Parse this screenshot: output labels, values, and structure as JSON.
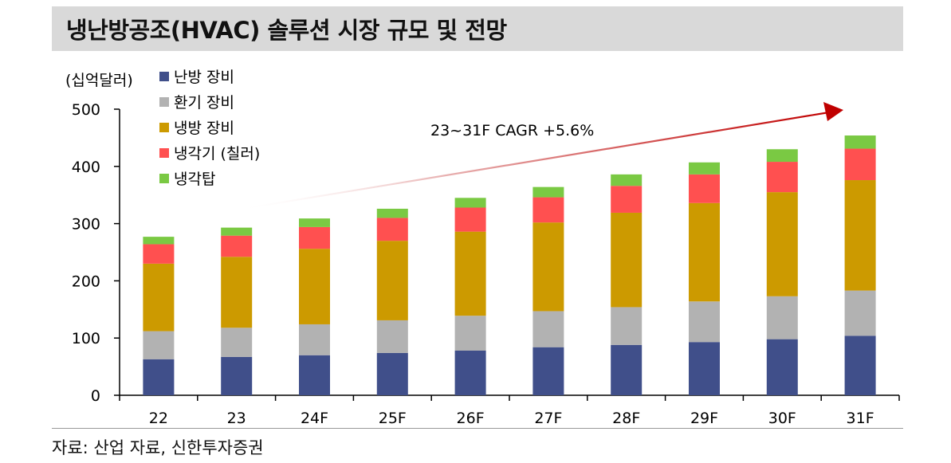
{
  "title": "냉난방공조(HVAC) 솔루션 시장 규모 및 전망",
  "source": "자료: 산업 자료, 신한투자증권",
  "colors": {
    "heating": "#404f8a",
    "ventilation": "#b2b2b2",
    "cooling": "#cc9a00",
    "chiller": "#ff5050",
    "tower": "#7ac943",
    "arrow": "#c00000"
  },
  "chart_data": {
    "type": "bar",
    "stacked": true,
    "title": "냉난방공조(HVAC) 솔루션 시장 규모 및 전망",
    "unit_label": "(십억달러)",
    "ylim": [
      0,
      500
    ],
    "yticks": [
      "0",
      "100",
      "200",
      "300",
      "400",
      "500"
    ],
    "ytick_values": [
      0,
      100,
      200,
      300,
      400,
      500
    ],
    "categories": [
      "22",
      "23",
      "24F",
      "25F",
      "26F",
      "27F",
      "28F",
      "29F",
      "30F",
      "31F"
    ],
    "series": [
      {
        "name": "난방 장비",
        "color_key": "heating",
        "values": [
          63,
          67,
          70,
          74,
          78,
          84,
          88,
          93,
          98,
          104
        ]
      },
      {
        "name": "환기 장비",
        "color_key": "ventilation",
        "values": [
          49,
          51,
          54,
          57,
          61,
          63,
          66,
          71,
          75,
          79
        ]
      },
      {
        "name": "냉방 장비",
        "color_key": "cooling",
        "values": [
          118,
          124,
          132,
          139,
          147,
          155,
          165,
          172,
          182,
          193
        ]
      },
      {
        "name": "냉각기 (칠러)",
        "color_key": "chiller",
        "values": [
          34,
          37,
          38,
          40,
          42,
          44,
          47,
          50,
          53,
          55
        ]
      },
      {
        "name": "냉각탑",
        "color_key": "tower",
        "values": [
          13,
          14,
          15,
          16,
          17,
          18,
          20,
          21,
          22,
          23
        ]
      }
    ],
    "annotation": "23~31F CAGR +5.6%",
    "legend_position": "top-left"
  }
}
